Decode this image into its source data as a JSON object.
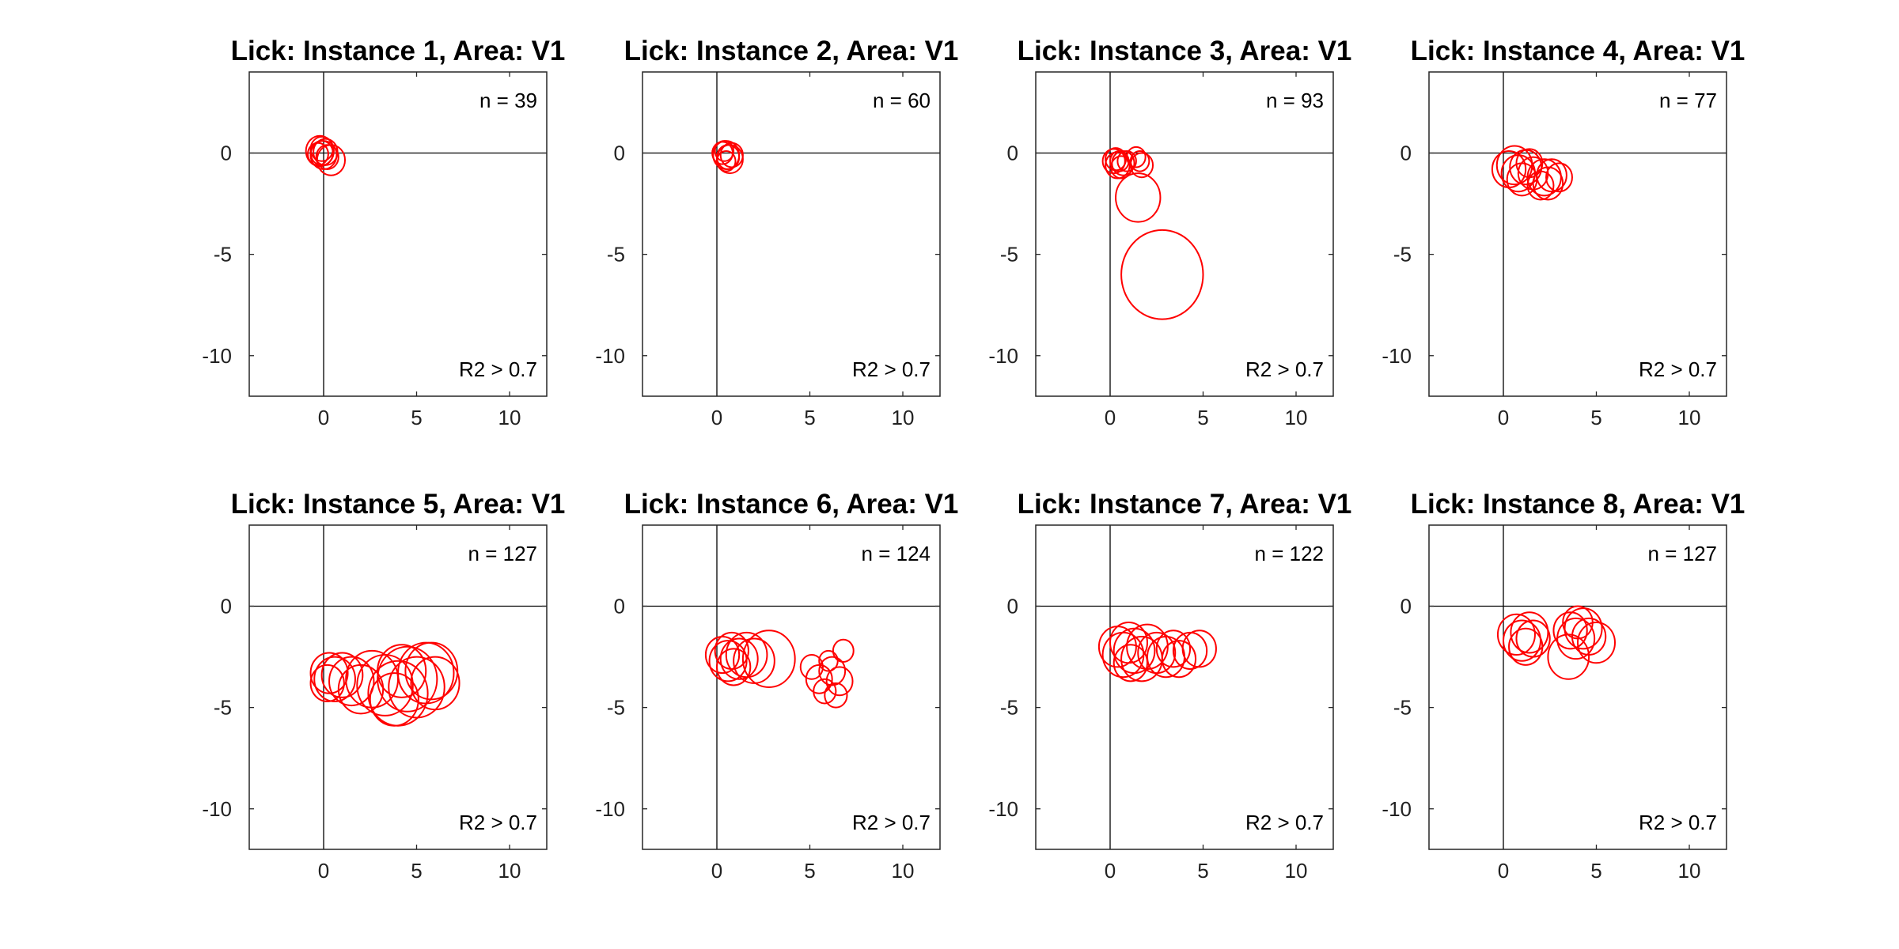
{
  "chart_data": [
    {
      "type": "scatter",
      "title": "Lick: Instance 1, Area: V1",
      "n_label": "n = 39",
      "r2_label": "R2 > 0.7",
      "xlim": [
        -4,
        12
      ],
      "ylim": [
        -12,
        4
      ],
      "xticks": [
        0,
        5,
        10
      ],
      "yticks": [
        0,
        -5,
        -10
      ],
      "grid": false,
      "circles": [
        {
          "cx": -0.2,
          "cy": 0.1,
          "r": 0.75
        },
        {
          "cx": 0.0,
          "cy": -0.1,
          "r": 0.7
        },
        {
          "cx": -0.1,
          "cy": 0.0,
          "r": 0.6
        },
        {
          "cx": 0.1,
          "cy": 0.05,
          "r": 0.65
        },
        {
          "cx": -0.3,
          "cy": -0.05,
          "r": 0.55
        },
        {
          "cx": 0.2,
          "cy": -0.2,
          "r": 0.6
        },
        {
          "cx": 0.4,
          "cy": -0.35,
          "r": 0.75
        },
        {
          "cx": -0.1,
          "cy": 0.2,
          "r": 0.6
        }
      ]
    },
    {
      "type": "scatter",
      "title": "Lick: Instance 2, Area: V1",
      "n_label": "n = 60",
      "r2_label": "R2 > 0.7",
      "xlim": [
        -4,
        12
      ],
      "ylim": [
        -12,
        4
      ],
      "xticks": [
        0,
        5,
        10
      ],
      "yticks": [
        0,
        -5,
        -10
      ],
      "grid": false,
      "circles": [
        {
          "cx": 0.5,
          "cy": -0.1,
          "r": 0.7
        },
        {
          "cx": 0.6,
          "cy": -0.2,
          "r": 0.6
        },
        {
          "cx": 0.3,
          "cy": 0.0,
          "r": 0.55
        },
        {
          "cx": 0.7,
          "cy": -0.3,
          "r": 0.7
        },
        {
          "cx": 0.5,
          "cy": -0.4,
          "r": 0.5
        },
        {
          "cx": 0.4,
          "cy": 0.1,
          "r": 0.5
        },
        {
          "cx": 0.8,
          "cy": -0.1,
          "r": 0.6
        }
      ]
    },
    {
      "type": "scatter",
      "title": "Lick: Instance 3, Area: V1",
      "n_label": "n = 93",
      "r2_label": "R2 > 0.7",
      "xlim": [
        -4,
        12
      ],
      "ylim": [
        -12,
        4
      ],
      "xticks": [
        0,
        5,
        10
      ],
      "yticks": [
        0,
        -5,
        -10
      ],
      "grid": false,
      "circles": [
        {
          "cx": 0.2,
          "cy": -0.4,
          "r": 0.6
        },
        {
          "cx": 0.4,
          "cy": -0.6,
          "r": 0.65
        },
        {
          "cx": 0.3,
          "cy": -0.3,
          "r": 0.55
        },
        {
          "cx": 0.7,
          "cy": -0.5,
          "r": 0.6
        },
        {
          "cx": 0.6,
          "cy": -0.7,
          "r": 0.55
        },
        {
          "cx": 0.9,
          "cy": -0.4,
          "r": 0.5
        },
        {
          "cx": 0.5,
          "cy": -0.4,
          "r": 0.5
        },
        {
          "cx": 1.4,
          "cy": -0.2,
          "r": 0.5
        },
        {
          "cx": 1.6,
          "cy": -0.4,
          "r": 0.5
        },
        {
          "cx": 1.7,
          "cy": -0.6,
          "r": 0.6
        },
        {
          "cx": 1.5,
          "cy": -2.2,
          "r": 1.2
        },
        {
          "cx": 2.8,
          "cy": -6.0,
          "r": 2.2
        }
      ]
    },
    {
      "type": "scatter",
      "title": "Lick: Instance 4, Area: V1",
      "n_label": "n = 77",
      "r2_label": "R2 > 0.7",
      "xlim": [
        -4,
        12
      ],
      "ylim": [
        -12,
        4
      ],
      "xticks": [
        0,
        5,
        10
      ],
      "yticks": [
        0,
        -5,
        -10
      ],
      "grid": false,
      "circles": [
        {
          "cx": 0.3,
          "cy": -0.8,
          "r": 0.9
        },
        {
          "cx": 0.6,
          "cy": -0.6,
          "r": 0.95
        },
        {
          "cx": 0.8,
          "cy": -1.0,
          "r": 0.9
        },
        {
          "cx": 1.2,
          "cy": -0.7,
          "r": 0.85
        },
        {
          "cx": 1.0,
          "cy": -1.3,
          "r": 0.8
        },
        {
          "cx": 1.6,
          "cy": -1.0,
          "r": 0.8
        },
        {
          "cx": 2.2,
          "cy": -1.2,
          "r": 0.9
        },
        {
          "cx": 2.6,
          "cy": -1.1,
          "r": 0.8
        },
        {
          "cx": 2.4,
          "cy": -1.5,
          "r": 0.8
        },
        {
          "cx": 3.0,
          "cy": -1.2,
          "r": 0.7
        },
        {
          "cx": 2.0,
          "cy": -1.6,
          "r": 0.7
        },
        {
          "cx": 1.4,
          "cy": -0.5,
          "r": 0.7
        }
      ]
    },
    {
      "type": "scatter",
      "title": "Lick: Instance 5, Area: V1",
      "n_label": "n = 127",
      "r2_label": "R2 > 0.7",
      "xlim": [
        -4,
        12
      ],
      "ylim": [
        -12,
        4
      ],
      "xticks": [
        0,
        5,
        10
      ],
      "yticks": [
        0,
        -5,
        -10
      ],
      "grid": false,
      "circles": [
        {
          "cx": 0.3,
          "cy": -3.3,
          "r": 1.0
        },
        {
          "cx": 0.6,
          "cy": -3.6,
          "r": 1.1
        },
        {
          "cx": 0.2,
          "cy": -3.8,
          "r": 0.9
        },
        {
          "cx": 1.0,
          "cy": -3.4,
          "r": 1.1
        },
        {
          "cx": 1.5,
          "cy": -3.7,
          "r": 1.2
        },
        {
          "cx": 2.0,
          "cy": -4.1,
          "r": 1.2
        },
        {
          "cx": 2.6,
          "cy": -3.6,
          "r": 1.4
        },
        {
          "cx": 3.3,
          "cy": -3.9,
          "r": 1.5
        },
        {
          "cx": 4.0,
          "cy": -4.3,
          "r": 1.6
        },
        {
          "cx": 4.5,
          "cy": -3.6,
          "r": 1.6
        },
        {
          "cx": 5.0,
          "cy": -4.0,
          "r": 1.5
        },
        {
          "cx": 5.5,
          "cy": -3.3,
          "r": 1.5
        },
        {
          "cx": 6.0,
          "cy": -3.8,
          "r": 1.3
        },
        {
          "cx": 5.8,
          "cy": -3.2,
          "r": 1.4
        },
        {
          "cx": 4.2,
          "cy": -3.2,
          "r": 1.3
        },
        {
          "cx": 3.8,
          "cy": -4.6,
          "r": 1.3
        }
      ]
    },
    {
      "type": "scatter",
      "title": "Lick: Instance 6, Area: V1",
      "n_label": "n = 124",
      "r2_label": "R2 > 0.7",
      "xlim": [
        -4,
        12
      ],
      "ylim": [
        -12,
        4
      ],
      "xticks": [
        0,
        5,
        10
      ],
      "yticks": [
        0,
        -5,
        -10
      ],
      "grid": false,
      "circles": [
        {
          "cx": 0.3,
          "cy": -2.4,
          "r": 0.9
        },
        {
          "cx": 0.6,
          "cy": -2.7,
          "r": 1.0
        },
        {
          "cx": 0.8,
          "cy": -2.2,
          "r": 0.9
        },
        {
          "cx": 1.2,
          "cy": -2.6,
          "r": 1.0
        },
        {
          "cx": 1.6,
          "cy": -2.4,
          "r": 1.1
        },
        {
          "cx": 2.0,
          "cy": -2.7,
          "r": 1.1
        },
        {
          "cx": 2.8,
          "cy": -2.6,
          "r": 1.4
        },
        {
          "cx": 0.9,
          "cy": -3.0,
          "r": 0.9
        },
        {
          "cx": 5.1,
          "cy": -3.0,
          "r": 0.6
        },
        {
          "cx": 5.5,
          "cy": -3.6,
          "r": 0.7
        },
        {
          "cx": 5.8,
          "cy": -4.2,
          "r": 0.6
        },
        {
          "cx": 6.2,
          "cy": -3.2,
          "r": 0.7
        },
        {
          "cx": 6.4,
          "cy": -4.4,
          "r": 0.6
        },
        {
          "cx": 6.8,
          "cy": -2.2,
          "r": 0.55
        },
        {
          "cx": 6.6,
          "cy": -3.7,
          "r": 0.7
        },
        {
          "cx": 6.0,
          "cy": -2.7,
          "r": 0.5
        }
      ]
    },
    {
      "type": "scatter",
      "title": "Lick: Instance 7, Area: V1",
      "n_label": "n = 122",
      "r2_label": "R2 > 0.7",
      "xlim": [
        -4,
        12
      ],
      "ylim": [
        -12,
        4
      ],
      "xticks": [
        0,
        5,
        10
      ],
      "yticks": [
        0,
        -5,
        -10
      ],
      "grid": false,
      "circles": [
        {
          "cx": 0.4,
          "cy": -2.0,
          "r": 1.0
        },
        {
          "cx": 0.7,
          "cy": -2.4,
          "r": 1.1
        },
        {
          "cx": 1.0,
          "cy": -1.8,
          "r": 1.0
        },
        {
          "cx": 1.3,
          "cy": -2.2,
          "r": 1.1
        },
        {
          "cx": 1.7,
          "cy": -2.6,
          "r": 1.1
        },
        {
          "cx": 2.0,
          "cy": -2.0,
          "r": 1.1
        },
        {
          "cx": 2.5,
          "cy": -2.3,
          "r": 1.0
        },
        {
          "cx": 3.0,
          "cy": -2.5,
          "r": 1.0
        },
        {
          "cx": 3.4,
          "cy": -2.1,
          "r": 0.9
        },
        {
          "cx": 3.7,
          "cy": -2.6,
          "r": 0.9
        },
        {
          "cx": 4.3,
          "cy": -2.2,
          "r": 0.9
        },
        {
          "cx": 4.8,
          "cy": -2.1,
          "r": 0.9
        },
        {
          "cx": 1.1,
          "cy": -2.8,
          "r": 0.9
        }
      ]
    },
    {
      "type": "scatter",
      "title": "Lick: Instance 8, Area: V1",
      "n_label": "n = 127",
      "r2_label": "R2 > 0.7",
      "xlim": [
        -4,
        12
      ],
      "ylim": [
        -12,
        4
      ],
      "xticks": [
        0,
        5,
        10
      ],
      "yticks": [
        0,
        -5,
        -10
      ],
      "grid": false,
      "circles": [
        {
          "cx": 0.7,
          "cy": -1.4,
          "r": 1.0
        },
        {
          "cx": 1.0,
          "cy": -1.7,
          "r": 1.0
        },
        {
          "cx": 1.4,
          "cy": -1.3,
          "r": 1.0
        },
        {
          "cx": 1.2,
          "cy": -2.0,
          "r": 0.9
        },
        {
          "cx": 1.6,
          "cy": -1.6,
          "r": 0.9
        },
        {
          "cx": 3.6,
          "cy": -1.2,
          "r": 0.9
        },
        {
          "cx": 3.9,
          "cy": -1.6,
          "r": 1.0
        },
        {
          "cx": 4.3,
          "cy": -1.1,
          "r": 1.0
        },
        {
          "cx": 4.6,
          "cy": -1.5,
          "r": 0.9
        },
        {
          "cx": 5.0,
          "cy": -1.8,
          "r": 1.0
        },
        {
          "cx": 3.5,
          "cy": -2.5,
          "r": 1.1
        },
        {
          "cx": 4.0,
          "cy": -0.8,
          "r": 0.8
        }
      ]
    }
  ],
  "style": {
    "circle_color": "#ff0000",
    "axis_color": "#262626",
    "zero_line_color": "#000000",
    "background": "#ffffff"
  }
}
